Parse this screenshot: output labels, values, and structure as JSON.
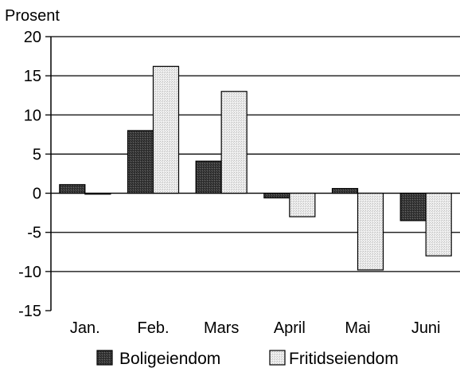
{
  "chart_data": {
    "type": "bar",
    "ylabel": "Prosent",
    "categories": [
      "Jan.",
      "Feb.",
      "Mars",
      "April",
      "Mai",
      "Juni"
    ],
    "ylim": [
      -15,
      20
    ],
    "yticks": [
      20,
      15,
      10,
      5,
      0,
      -5,
      -10,
      -15
    ],
    "grid": true,
    "legend_position": "bottom",
    "series": [
      {
        "name": "Boligeiendom",
        "values": [
          1.1,
          8.0,
          4.1,
          -0.6,
          0.6,
          -3.5
        ],
        "color": "#3a3a3a",
        "pattern": "dark-stipple"
      },
      {
        "name": "Fritidseiendom",
        "values": [
          -0.1,
          16.2,
          13.0,
          -3.0,
          -9.8,
          -8.0
        ],
        "color": "#e6e6e6",
        "pattern": "light-stipple"
      }
    ]
  }
}
